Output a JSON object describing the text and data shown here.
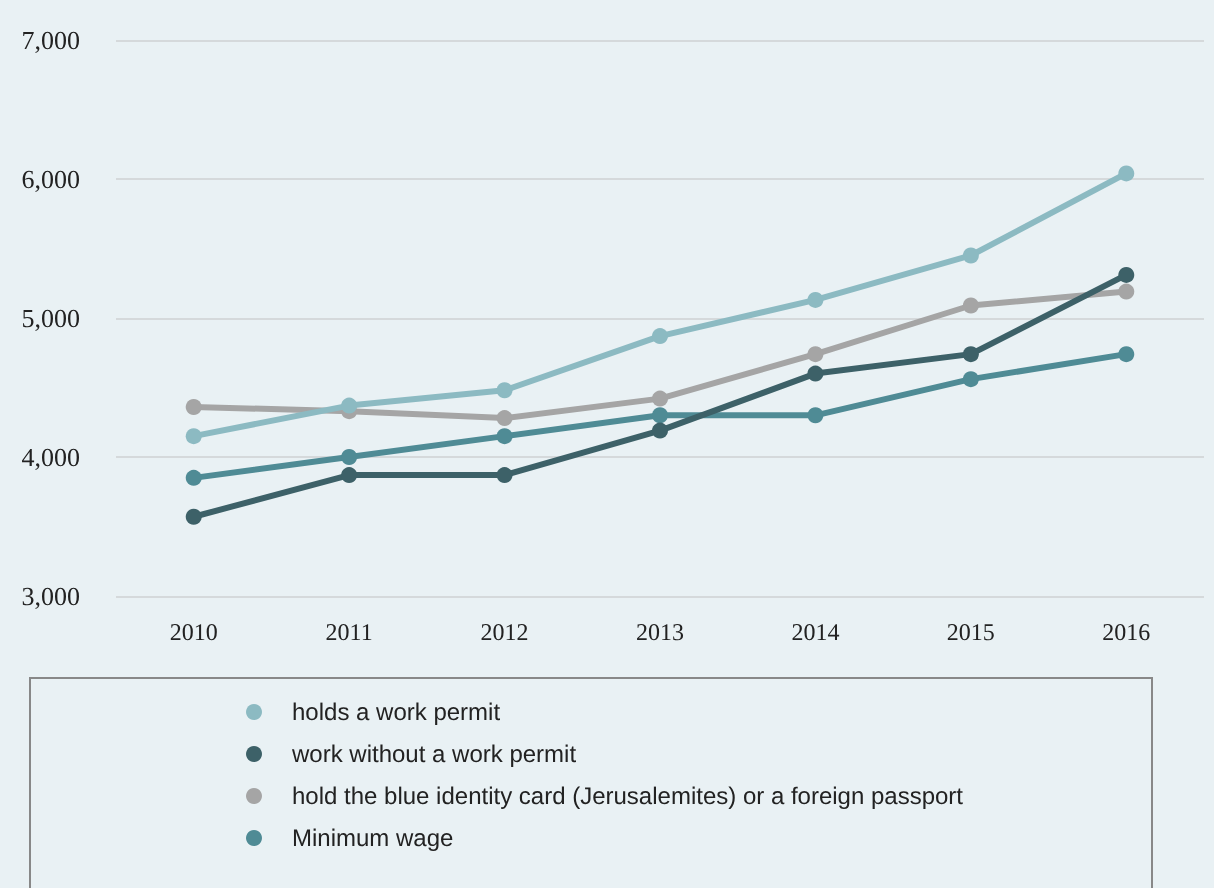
{
  "chart_data": {
    "type": "line",
    "categories": [
      "2010",
      "2011",
      "2012",
      "2013",
      "2014",
      "2015",
      "2016"
    ],
    "series": [
      {
        "name": "holds a work permit",
        "color": "#8cbac2",
        "values": [
          4150,
          4370,
          4480,
          4870,
          5130,
          5450,
          6040
        ]
      },
      {
        "name": "work without a work permit",
        "color": "#3d6168",
        "values": [
          3570,
          3870,
          3870,
          4190,
          4600,
          4740,
          5310
        ]
      },
      {
        "name": "hold the blue identity card (Jerusalemites) or a foreign passport",
        "color": "#a5a5a5",
        "values": [
          4360,
          4330,
          4280,
          4420,
          4740,
          5090,
          5190
        ]
      },
      {
        "name": "Minimum wage",
        "color": "#4f8b95",
        "values": [
          3850,
          4000,
          4150,
          4300,
          4300,
          4560,
          4740
        ]
      }
    ],
    "ylim": [
      3000,
      7000
    ],
    "yticks": [
      {
        "value": 3000,
        "label": "3,000"
      },
      {
        "value": 4000,
        "label": "4,000"
      },
      {
        "value": 5000,
        "label": "5,000"
      },
      {
        "value": 6000,
        "label": "6,000"
      },
      {
        "value": 7000,
        "label": "7,000"
      }
    ],
    "grid": "y",
    "legend": "bottom",
    "marker": "circle",
    "line_style": "solid"
  }
}
